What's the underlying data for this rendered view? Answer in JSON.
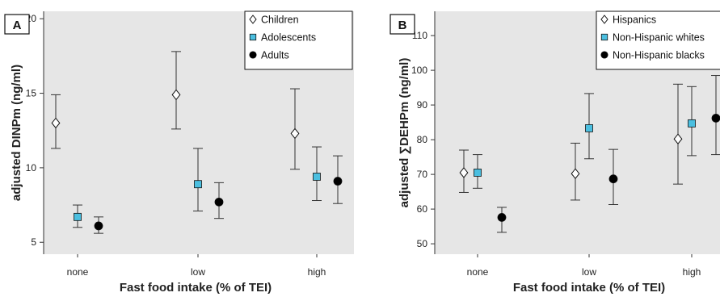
{
  "chart_data": [
    {
      "type": "scatter",
      "panel_label": "A",
      "title": "",
      "xlabel": "Fast food intake (% of TEI)",
      "ylabel": "adjusted DINPm (ng/ml)",
      "categories": [
        "none",
        "low",
        "high"
      ],
      "yticks": [
        5,
        10,
        15,
        20
      ],
      "ylim": [
        4.2,
        20.5
      ],
      "grid": false,
      "background": "#e6e6e6",
      "legend_position": "top-right",
      "series": [
        {
          "name": "Children",
          "marker": "diamond-open",
          "color": "#ffffff",
          "values": [
            13.0,
            14.9,
            12.3
          ],
          "lower": [
            11.3,
            12.6,
            9.9
          ],
          "upper": [
            14.9,
            17.8,
            15.3
          ]
        },
        {
          "name": "Adolescents",
          "marker": "square",
          "color": "#4bbfe0",
          "values": [
            6.7,
            8.9,
            9.4
          ],
          "lower": [
            6.0,
            7.1,
            7.8
          ],
          "upper": [
            7.5,
            11.3,
            11.4
          ]
        },
        {
          "name": "Adults",
          "marker": "circle",
          "color": "#000000",
          "values": [
            6.1,
            7.7,
            9.1
          ],
          "lower": [
            5.6,
            6.6,
            7.6
          ],
          "upper": [
            6.7,
            9.0,
            10.8
          ]
        }
      ]
    },
    {
      "type": "scatter",
      "panel_label": "B",
      "title": "",
      "xlabel": "Fast food intake (% of TEI)",
      "ylabel": "adjusted ∑DEHPm (ng/ml)",
      "categories": [
        "none",
        "low",
        "high"
      ],
      "yticks": [
        50,
        60,
        70,
        80,
        90,
        100,
        110
      ],
      "ylim": [
        47,
        117
      ],
      "grid": false,
      "background": "#e6e6e6",
      "legend_position": "top-right",
      "series": [
        {
          "name": "Hispanics",
          "marker": "diamond-open",
          "color": "#ffffff",
          "values": [
            70.5,
            70.2,
            80.2
          ],
          "lower": [
            64.8,
            62.6,
            67.2
          ],
          "upper": [
            77.0,
            79.0,
            96.0
          ]
        },
        {
          "name": "Non-Hispanic whites",
          "marker": "square",
          "color": "#4bbfe0",
          "values": [
            70.5,
            83.3,
            84.7
          ],
          "lower": [
            66.0,
            74.5,
            75.4
          ],
          "upper": [
            75.7,
            93.3,
            95.3
          ]
        },
        {
          "name": "Non-Hispanic blacks",
          "marker": "circle",
          "color": "#000000",
          "values": [
            57.6,
            68.7,
            86.2
          ],
          "lower": [
            53.3,
            61.3,
            75.7
          ],
          "upper": [
            60.5,
            77.2,
            98.5
          ]
        }
      ]
    }
  ]
}
